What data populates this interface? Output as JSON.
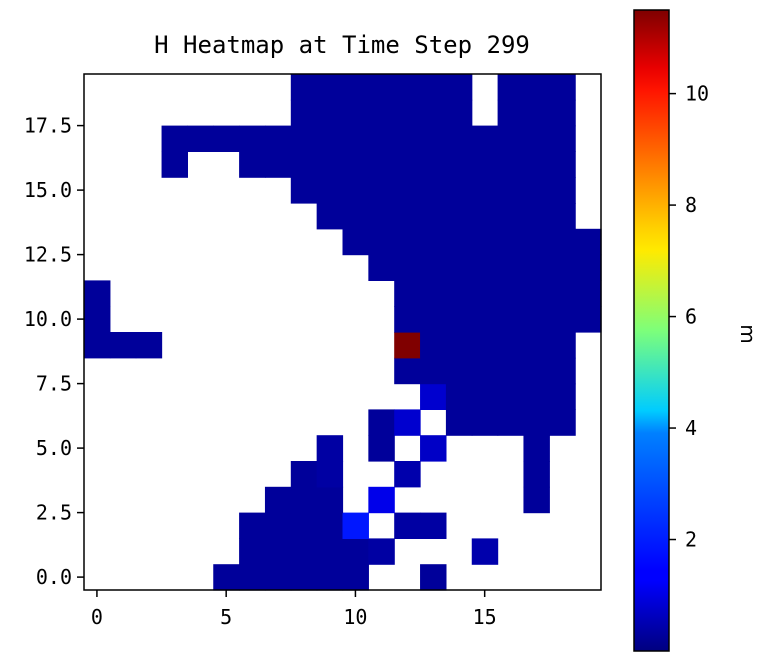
{
  "chart_data": {
    "type": "heatmap",
    "title": "H Heatmap at Time Step 299",
    "xlabel": "",
    "ylabel": "",
    "x_ticks": [
      "0",
      "5",
      "10",
      "15"
    ],
    "y_ticks": [
      "0.0",
      "2.5",
      "5.0",
      "7.5",
      "10.0",
      "12.5",
      "15.0",
      "17.5"
    ],
    "xlim": [
      -0.5,
      19.5
    ],
    "ylim": [
      -0.5,
      19.5
    ],
    "grid": false,
    "colormap": "jet",
    "colorbar": {
      "label": "m",
      "vmin": 0.0,
      "vmax": 11.5,
      "ticks": [
        "2",
        "4",
        "6",
        "8",
        "10"
      ]
    },
    "empty_value": null,
    "rows": [
      {
        "y": 0,
        "values": [
          null,
          null,
          null,
          null,
          null,
          0.3,
          0.3,
          0.3,
          0.3,
          0.3,
          0.3,
          null,
          null,
          0.3,
          null,
          null,
          null,
          null,
          null,
          null
        ]
      },
      {
        "y": 1,
        "values": [
          null,
          null,
          null,
          null,
          null,
          null,
          0.3,
          0.3,
          0.3,
          0.3,
          0.3,
          0.4,
          null,
          null,
          null,
          0.5,
          null,
          null,
          null,
          null
        ]
      },
      {
        "y": 2,
        "values": [
          null,
          null,
          null,
          null,
          null,
          null,
          0.3,
          0.3,
          0.3,
          0.3,
          1.7,
          null,
          0.4,
          0.4,
          null,
          null,
          null,
          null,
          null,
          null
        ]
      },
      {
        "y": 3,
        "values": [
          null,
          null,
          null,
          null,
          null,
          null,
          null,
          0.3,
          0.3,
          0.3,
          null,
          1.2,
          null,
          null,
          null,
          null,
          null,
          0.3,
          null,
          null
        ]
      },
      {
        "y": 4,
        "values": [
          null,
          null,
          null,
          null,
          null,
          null,
          null,
          null,
          0.3,
          0.4,
          null,
          null,
          0.5,
          null,
          null,
          null,
          null,
          0.3,
          null,
          null
        ]
      },
      {
        "y": 5,
        "values": [
          null,
          null,
          null,
          null,
          null,
          null,
          null,
          null,
          null,
          0.4,
          null,
          0.3,
          null,
          0.8,
          null,
          null,
          null,
          0.3,
          null,
          null
        ]
      },
      {
        "y": 6,
        "values": [
          null,
          null,
          null,
          null,
          null,
          null,
          null,
          null,
          null,
          null,
          null,
          0.3,
          0.9,
          null,
          0.3,
          0.3,
          0.3,
          0.3,
          0.3,
          null
        ]
      },
      {
        "y": 7,
        "values": [
          null,
          null,
          null,
          null,
          null,
          null,
          null,
          null,
          null,
          null,
          null,
          null,
          null,
          0.9,
          0.3,
          0.3,
          0.3,
          0.3,
          0.3,
          null
        ]
      },
      {
        "y": 8,
        "values": [
          null,
          null,
          null,
          null,
          null,
          null,
          null,
          null,
          null,
          null,
          null,
          null,
          0.3,
          0.3,
          0.3,
          0.3,
          0.3,
          0.3,
          0.3,
          null
        ]
      },
      {
        "y": 9,
        "values": [
          0.3,
          0.3,
          0.3,
          null,
          null,
          null,
          null,
          null,
          null,
          null,
          null,
          null,
          11.5,
          0.3,
          0.3,
          0.3,
          0.3,
          0.3,
          0.3,
          null
        ]
      },
      {
        "y": 10,
        "values": [
          0.3,
          null,
          null,
          null,
          null,
          null,
          null,
          null,
          null,
          null,
          null,
          null,
          0.3,
          0.3,
          0.3,
          0.3,
          0.3,
          0.3,
          0.3,
          0.3
        ]
      },
      {
        "y": 11,
        "values": [
          0.3,
          null,
          null,
          null,
          null,
          null,
          null,
          null,
          null,
          null,
          null,
          null,
          0.3,
          0.3,
          0.3,
          0.3,
          0.3,
          0.3,
          0.3,
          0.3
        ]
      },
      {
        "y": 12,
        "values": [
          null,
          null,
          null,
          null,
          null,
          null,
          null,
          null,
          null,
          null,
          null,
          0.3,
          0.3,
          0.3,
          0.3,
          0.3,
          0.3,
          0.3,
          0.3,
          0.3
        ]
      },
      {
        "y": 13,
        "values": [
          null,
          null,
          null,
          null,
          null,
          null,
          null,
          null,
          null,
          null,
          0.3,
          0.3,
          0.3,
          0.3,
          0.3,
          0.3,
          0.3,
          0.3,
          0.3,
          0.3
        ]
      },
      {
        "y": 14,
        "values": [
          null,
          null,
          null,
          null,
          null,
          null,
          null,
          null,
          null,
          0.3,
          0.3,
          0.3,
          0.3,
          0.3,
          0.3,
          0.3,
          0.3,
          0.3,
          0.3,
          null
        ]
      },
      {
        "y": 15,
        "values": [
          null,
          null,
          null,
          null,
          null,
          null,
          null,
          null,
          0.3,
          0.3,
          0.3,
          0.3,
          0.3,
          0.3,
          0.3,
          0.3,
          0.3,
          0.3,
          0.3,
          null
        ]
      },
      {
        "y": 16,
        "values": [
          null,
          null,
          null,
          0.3,
          null,
          null,
          0.3,
          0.3,
          0.3,
          0.3,
          0.3,
          0.3,
          0.3,
          0.3,
          0.3,
          0.3,
          0.3,
          0.3,
          0.3,
          null
        ]
      },
      {
        "y": 17,
        "values": [
          null,
          null,
          null,
          0.3,
          0.3,
          0.3,
          0.3,
          0.3,
          0.3,
          0.3,
          0.3,
          0.3,
          0.3,
          0.3,
          0.3,
          0.3,
          0.3,
          0.3,
          0.3,
          null
        ]
      },
      {
        "y": 18,
        "values": [
          null,
          null,
          null,
          null,
          null,
          null,
          null,
          null,
          0.3,
          0.3,
          0.3,
          0.3,
          0.3,
          0.3,
          0.3,
          null,
          0.3,
          0.3,
          0.3,
          null
        ]
      },
      {
        "y": 19,
        "values": [
          null,
          null,
          null,
          null,
          null,
          null,
          null,
          null,
          0.3,
          0.3,
          0.3,
          0.3,
          0.3,
          0.3,
          0.3,
          null,
          0.3,
          0.3,
          0.3,
          null
        ]
      }
    ]
  }
}
